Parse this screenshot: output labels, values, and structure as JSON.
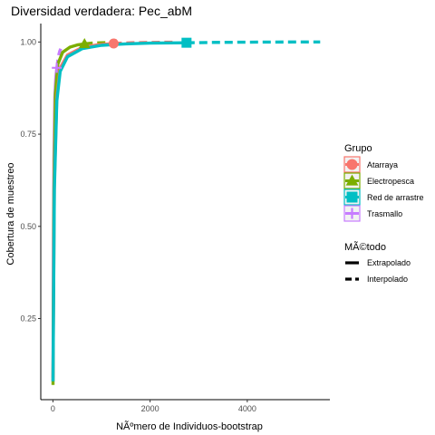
{
  "chart_data": {
    "type": "line",
    "title": "Diversidad verdadera: Pec_abM",
    "xlabel": "NÃºmero de Individuos-bootstrap",
    "ylabel": "Cobertura de muestreo",
    "xlim": [
      -250,
      5700
    ],
    "ylim": [
      0.03,
      1.05
    ],
    "xticks": [
      0,
      2000,
      4000
    ],
    "xtick_labels": [
      "0",
      "2000",
      "4000"
    ],
    "yticks": [
      0.25,
      0.5,
      0.75,
      1.0
    ],
    "ytick_labels": [
      "0.25",
      "0.50",
      "0.75",
      "1.00"
    ],
    "grid": false,
    "legend_position": "right",
    "legend_groups": {
      "title": "Grupo",
      "entries": [
        {
          "label": "Atarraya",
          "color": "#F8766D",
          "marker": "circle"
        },
        {
          "label": "Electropesca",
          "color": "#7CAE00",
          "marker": "triangle"
        },
        {
          "label": "Red de arrastre",
          "color": "#00BFC4",
          "marker": "square"
        },
        {
          "label": "Trasmallo",
          "color": "#C77CFF",
          "marker": "plus"
        }
      ]
    },
    "legend_methods": {
      "title": "MÃ©todo",
      "entries": [
        {
          "label": "Extrapolado",
          "style": "solid"
        },
        {
          "label": "Interpolado",
          "style": "dashed"
        }
      ]
    },
    "series": [
      {
        "name": "Trasmallo",
        "color": "#C77CFF",
        "observed": [
          80,
          0.93
        ],
        "interpolated": {
          "x": [
            1,
            10,
            20,
            40,
            60,
            80
          ],
          "y": [
            0.08,
            0.45,
            0.68,
            0.85,
            0.905,
            0.93
          ]
        },
        "extrapolated": {
          "x": [
            80,
            100,
            120,
            140,
            160
          ],
          "y": [
            0.93,
            0.95,
            0.965,
            0.975,
            0.982
          ]
        }
      },
      {
        "name": "Electropesca",
        "color": "#7CAE00",
        "observed": [
          650,
          0.995
        ],
        "interpolated": {
          "x": [
            1,
            20,
            50,
            100,
            200,
            350,
            500,
            650
          ],
          "y": [
            0.07,
            0.6,
            0.86,
            0.94,
            0.972,
            0.986,
            0.992,
            0.995
          ]
        },
        "extrapolated": {
          "x": [
            650,
            800,
            1000,
            1300
          ],
          "y": [
            0.995,
            0.997,
            0.998,
            0.999
          ]
        }
      },
      {
        "name": "Atarraya",
        "color": "#F8766D",
        "observed": [
          1250,
          0.996
        ],
        "interpolated": {
          "x": [
            1,
            30,
            80,
            150,
            300,
            600,
            900,
            1250
          ],
          "y": [
            0.09,
            0.62,
            0.85,
            0.93,
            0.965,
            0.985,
            0.992,
            0.996
          ]
        },
        "extrapolated": {
          "x": [
            1250,
            1600,
            2000,
            2500
          ],
          "y": [
            0.996,
            0.998,
            0.999,
            0.9995
          ]
        }
      },
      {
        "name": "Red de arrastre",
        "color": "#00BFC4",
        "observed": [
          2750,
          0.998
        ],
        "interpolated": {
          "x": [
            1,
            30,
            80,
            150,
            300,
            600,
            1000,
            1500,
            2000,
            2750
          ],
          "y": [
            0.08,
            0.6,
            0.84,
            0.92,
            0.96,
            0.982,
            0.991,
            0.995,
            0.997,
            0.998
          ]
        },
        "extrapolated": {
          "x": [
            2750,
            3500,
            4500,
            5500
          ],
          "y": [
            0.998,
            0.9992,
            0.9998,
            1.0
          ]
        }
      }
    ]
  }
}
